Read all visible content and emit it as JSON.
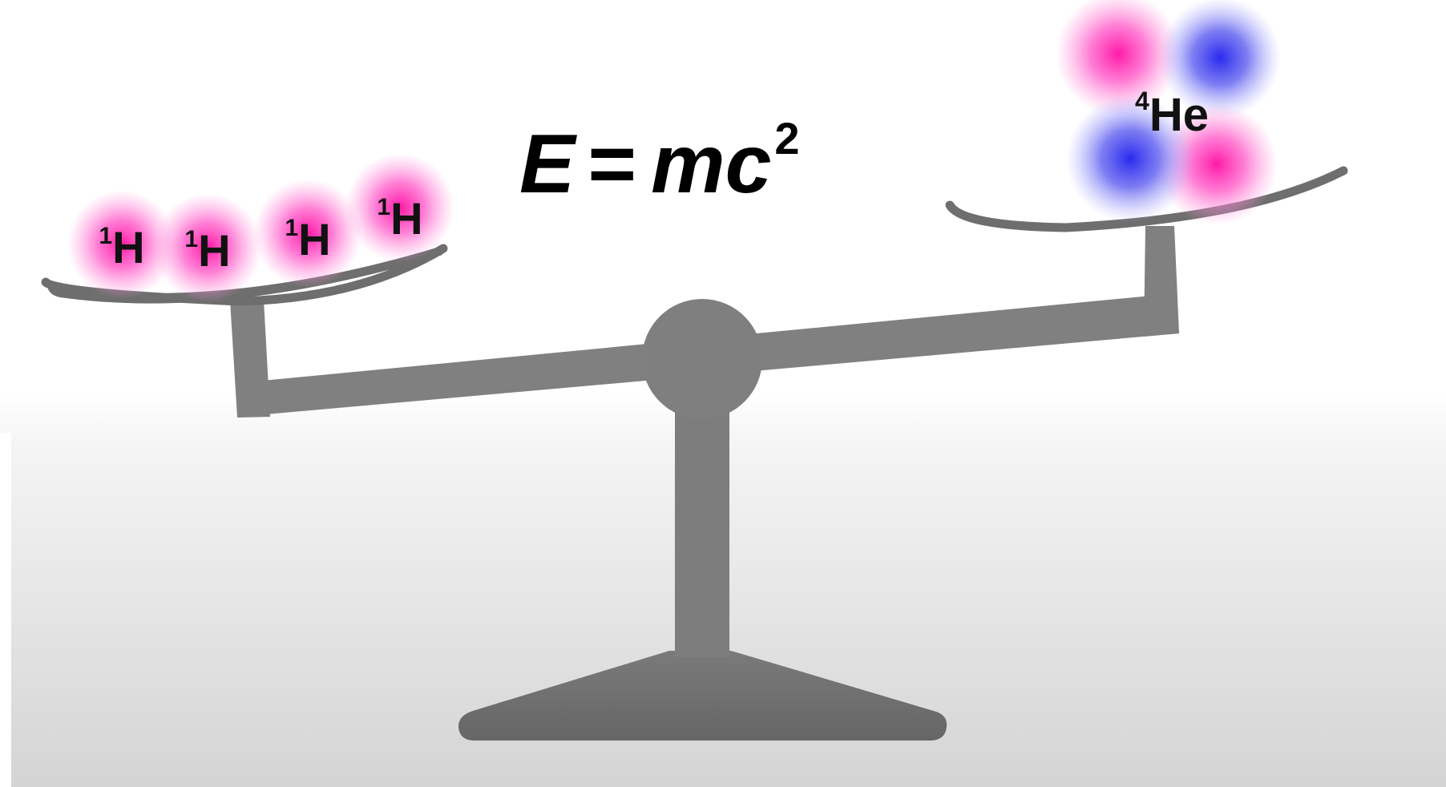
{
  "equation": {
    "E": "E",
    "equals": "=",
    "mc": "mc",
    "exponent": "2"
  },
  "left_pan": {
    "atoms": [
      {
        "mass_number": "1",
        "symbol": "H"
      },
      {
        "mass_number": "1",
        "symbol": "H"
      },
      {
        "mass_number": "1",
        "symbol": "H"
      },
      {
        "mass_number": "1",
        "symbol": "H"
      }
    ]
  },
  "right_pan": {
    "nucleus": {
      "mass_number": "4",
      "symbol": "He"
    }
  },
  "colors": {
    "proton": "#ff1aa8",
    "neutron": "#2a2aee",
    "scale": "#808080",
    "scale_dark": "#6a6a6a"
  }
}
